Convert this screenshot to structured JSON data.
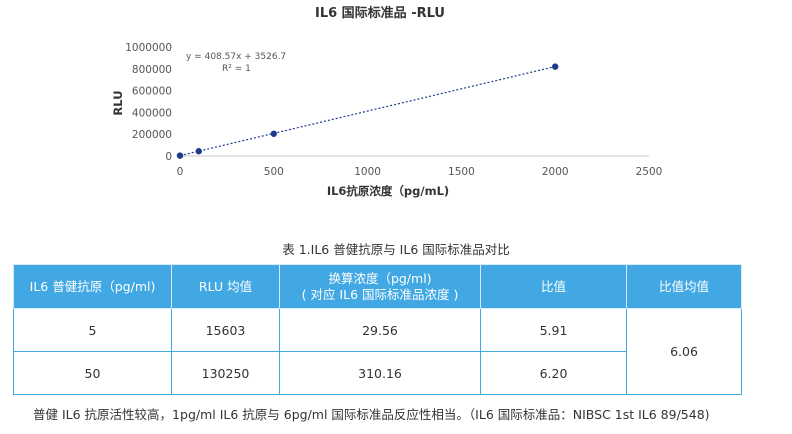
{
  "chart_data": {
    "type": "scatter",
    "title": "IL6 国际标准品 -RLU",
    "xlabel": "IL6抗原浓度（pg/mL)",
    "ylabel": "RLU",
    "xlim": [
      0,
      2500
    ],
    "ylim": [
      0,
      1000000
    ],
    "x_ticks": [
      "0",
      "500",
      "1000",
      "1500",
      "2000",
      "2500"
    ],
    "y_ticks": [
      "0",
      "200000",
      "400000",
      "600000",
      "800000",
      "1000000"
    ],
    "points": [
      {
        "x": 0,
        "y": 3500
      },
      {
        "x": 100,
        "y": 44000
      },
      {
        "x": 500,
        "y": 204000
      },
      {
        "x": 2000,
        "y": 820000
      }
    ],
    "trendline": {
      "type": "linear",
      "slope": 408.57,
      "intercept": 3526.7
    },
    "equation": "y = 408.57x + 3526.7",
    "r_squared": "R² = 1",
    "grid": false,
    "marker_color": "#1f3a8a",
    "trendline_color": "#1f3a8a"
  },
  "table": {
    "caption": "表 1.IL6 普健抗原与 IL6 国际标准品对比",
    "headers": {
      "col1": "IL6 普健抗原（pg/ml)",
      "col2": "RLU 均值",
      "col3_line1": "换算浓度（pg/ml)",
      "col3_line2": "( 对应 IL6 国际标准品浓度 )",
      "col4": "比值",
      "col5": "比值均值"
    },
    "rows": [
      {
        "antigen": "5",
        "rlu": "15603",
        "converted": "29.56",
        "ratio": "5.91"
      },
      {
        "antigen": "50",
        "rlu": "130250",
        "converted": "310.16",
        "ratio": "6.20"
      }
    ],
    "ratio_mean": "6.06",
    "header_color": "#42a8e4"
  },
  "footnote": "普健 IL6 抗原活性较高，1pg/ml IL6 抗原与 6pg/ml 国际标准品反应性相当。（IL6 国际标准品：NIBSC 1st IL6 89/548)"
}
